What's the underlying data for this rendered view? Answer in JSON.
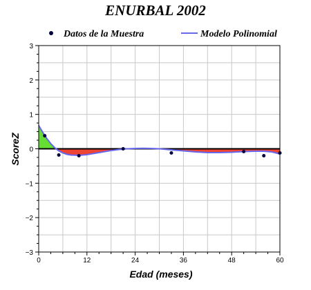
{
  "chart_data": {
    "type": "line",
    "title": "ENURBAL 2002",
    "xlabel": "Edad (meses)",
    "ylabel": "ScoreZ",
    "xlim": [
      0,
      60
    ],
    "ylim": [
      -3,
      3
    ],
    "xticks": [
      0,
      12,
      24,
      36,
      48,
      60
    ],
    "yticks": [
      -3,
      -2,
      -1,
      0,
      1,
      2,
      3
    ],
    "grid": true,
    "legend_position": "top",
    "series": [
      {
        "name": "Datos de la Muestra",
        "kind": "scatter",
        "color": "#000040",
        "points": [
          {
            "x": 1.5,
            "y": 0.38
          },
          {
            "x": 5,
            "y": -0.18
          },
          {
            "x": 10,
            "y": -0.2
          },
          {
            "x": 21,
            "y": 0.0
          },
          {
            "x": 33,
            "y": -0.12
          },
          {
            "x": 51,
            "y": -0.08
          },
          {
            "x": 56,
            "y": -0.2
          },
          {
            "x": 60,
            "y": -0.12
          }
        ]
      },
      {
        "name": "Modelo Polinomial",
        "kind": "line",
        "color": "#6666ee",
        "points": [
          {
            "x": 0,
            "y": 0.68
          },
          {
            "x": 1,
            "y": 0.48
          },
          {
            "x": 2,
            "y": 0.3
          },
          {
            "x": 3,
            "y": 0.15
          },
          {
            "x": 4,
            "y": 0.03
          },
          {
            "x": 5,
            "y": -0.06
          },
          {
            "x": 6,
            "y": -0.12
          },
          {
            "x": 7,
            "y": -0.16
          },
          {
            "x": 8,
            "y": -0.18
          },
          {
            "x": 10,
            "y": -0.19
          },
          {
            "x": 12,
            "y": -0.17
          },
          {
            "x": 14,
            "y": -0.13
          },
          {
            "x": 16,
            "y": -0.09
          },
          {
            "x": 18,
            "y": -0.05
          },
          {
            "x": 20,
            "y": -0.02
          },
          {
            "x": 22,
            "y": 0.0
          },
          {
            "x": 24,
            "y": 0.01
          },
          {
            "x": 26,
            "y": 0.015
          },
          {
            "x": 28,
            "y": 0.01
          },
          {
            "x": 30,
            "y": 0.0
          },
          {
            "x": 33,
            "y": -0.03
          },
          {
            "x": 36,
            "y": -0.06
          },
          {
            "x": 39,
            "y": -0.09
          },
          {
            "x": 42,
            "y": -0.11
          },
          {
            "x": 45,
            "y": -0.11
          },
          {
            "x": 48,
            "y": -0.1
          },
          {
            "x": 51,
            "y": -0.08
          },
          {
            "x": 54,
            "y": -0.07
          },
          {
            "x": 56,
            "y": -0.07
          },
          {
            "x": 58,
            "y": -0.09
          },
          {
            "x": 60,
            "y": -0.15
          }
        ]
      }
    ],
    "fill_colors": {
      "above_zero": "#66dd33",
      "below_zero": "#ee4433"
    },
    "zero_line_color": "#000000"
  }
}
